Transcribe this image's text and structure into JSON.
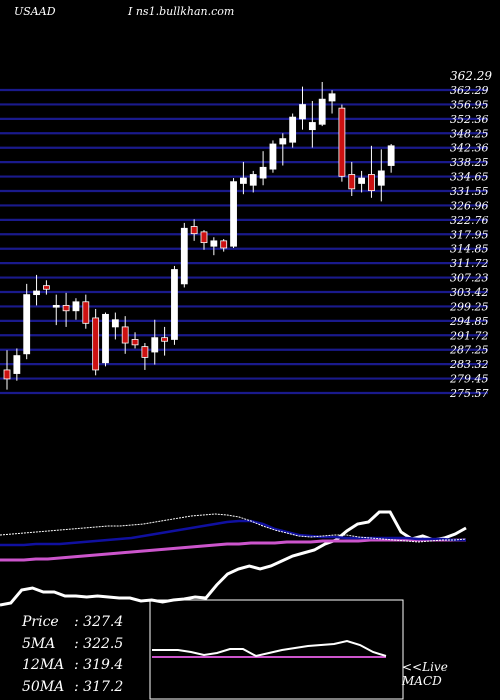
{
  "header": {
    "ticker": "USAAD",
    "site": "I ns1.bullkhan.com"
  },
  "colors": {
    "background": "#000000",
    "grid": "#1a1a8c",
    "up": "#ffffff",
    "down": "#cc1111",
    "ma_short": "#ffffff",
    "ma_mid": "#1010a0",
    "ma_long": "#cc55cc",
    "text": "#ffffff"
  },
  "chart_data": {
    "type": "candlestick",
    "price_axis": {
      "range": [
        275.57,
        362.29
      ],
      "top_label": "362.29",
      "tick_labels": [
        "362.29",
        "356.95",
        "352.36",
        "348.25",
        "342.36",
        "338.25",
        "334.65",
        "331.55",
        "326.96",
        "322.76",
        "317.95",
        "314.85",
        "311.72",
        "307.23",
        "303.42",
        "299.25",
        "294.85",
        "291.72",
        "287.25",
        "283.32",
        "279.45",
        "275.57"
      ]
    },
    "candles": [
      {
        "o": 282.0,
        "h": 287.5,
        "l": 276.5,
        "c": 279.5
      },
      {
        "o": 281.0,
        "h": 288.0,
        "l": 279.0,
        "c": 286.0
      },
      {
        "o": 286.5,
        "h": 306.0,
        "l": 285.0,
        "c": 303.0
      },
      {
        "o": 303.0,
        "h": 308.5,
        "l": 300.0,
        "c": 304.0
      },
      {
        "o": 305.5,
        "h": 307.0,
        "l": 303.0,
        "c": 304.5
      },
      {
        "o": 299.5,
        "h": 303.0,
        "l": 294.5,
        "c": 300.0
      },
      {
        "o": 300.0,
        "h": 303.5,
        "l": 294.0,
        "c": 298.5
      },
      {
        "o": 298.5,
        "h": 302.0,
        "l": 296.0,
        "c": 301.0
      },
      {
        "o": 301.0,
        "h": 303.0,
        "l": 293.5,
        "c": 295.0
      },
      {
        "o": 296.5,
        "h": 299.0,
        "l": 280.5,
        "c": 282.0
      },
      {
        "o": 284.0,
        "h": 298.0,
        "l": 283.0,
        "c": 297.5
      },
      {
        "o": 294.0,
        "h": 298.0,
        "l": 290.5,
        "c": 296.0
      },
      {
        "o": 294.0,
        "h": 297.0,
        "l": 286.5,
        "c": 289.5
      },
      {
        "o": 290.5,
        "h": 292.5,
        "l": 288.0,
        "c": 289.0
      },
      {
        "o": 288.5,
        "h": 289.5,
        "l": 282.0,
        "c": 285.5
      },
      {
        "o": 287.0,
        "h": 296.0,
        "l": 283.5,
        "c": 291.0
      },
      {
        "o": 291.0,
        "h": 294.0,
        "l": 286.0,
        "c": 290.0
      },
      {
        "o": 290.5,
        "h": 311.0,
        "l": 289.0,
        "c": 310.0
      },
      {
        "o": 306.0,
        "h": 323.0,
        "l": 305.0,
        "c": 321.5
      },
      {
        "o": 322.0,
        "h": 324.0,
        "l": 318.0,
        "c": 320.0
      },
      {
        "o": 320.5,
        "h": 321.0,
        "l": 315.5,
        "c": 317.5
      },
      {
        "o": 316.5,
        "h": 319.0,
        "l": 314.0,
        "c": 318.0
      },
      {
        "o": 318.0,
        "h": 318.5,
        "l": 315.0,
        "c": 316.0
      },
      {
        "o": 316.5,
        "h": 335.5,
        "l": 316.0,
        "c": 334.5
      },
      {
        "o": 334.0,
        "h": 340.0,
        "l": 331.0,
        "c": 335.5
      },
      {
        "o": 333.5,
        "h": 337.5,
        "l": 331.5,
        "c": 336.5
      },
      {
        "o": 335.5,
        "h": 343.0,
        "l": 333.5,
        "c": 338.5
      },
      {
        "o": 338.0,
        "h": 346.0,
        "l": 337.0,
        "c": 345.0
      },
      {
        "o": 345.0,
        "h": 348.0,
        "l": 339.0,
        "c": 346.5
      },
      {
        "o": 345.5,
        "h": 353.5,
        "l": 344.0,
        "c": 352.5
      },
      {
        "o": 352.0,
        "h": 361.0,
        "l": 349.0,
        "c": 356.0
      },
      {
        "o": 349.0,
        "h": 357.0,
        "l": 344.0,
        "c": 351.0
      },
      {
        "o": 350.5,
        "h": 362.3,
        "l": 350.0,
        "c": 357.5
      },
      {
        "o": 357.0,
        "h": 360.0,
        "l": 353.5,
        "c": 359.0
      },
      {
        "o": 355.0,
        "h": 356.0,
        "l": 334.5,
        "c": 336.0
      },
      {
        "o": 336.5,
        "h": 340.0,
        "l": 330.5,
        "c": 332.5
      },
      {
        "o": 334.0,
        "h": 337.5,
        "l": 331.5,
        "c": 335.5
      },
      {
        "o": 336.5,
        "h": 344.5,
        "l": 330.0,
        "c": 332.0
      },
      {
        "o": 333.5,
        "h": 343.5,
        "l": 329.0,
        "c": 337.5
      },
      {
        "o": 339.0,
        "h": 345.0,
        "l": 337.0,
        "c": 344.5
      }
    ],
    "ma_panel": {
      "ma_short": [
        535,
        534,
        533,
        532,
        531,
        530,
        529,
        528,
        527,
        526,
        526,
        525,
        524,
        522,
        520,
        518,
        516,
        515,
        514,
        515,
        517,
        521,
        526,
        530,
        533,
        536,
        537,
        536,
        535,
        535,
        537,
        538,
        539,
        540,
        541,
        542,
        541,
        540,
        540,
        539
      ],
      "ma_mid": [
        545,
        545,
        545,
        544,
        544,
        544,
        543,
        542,
        541,
        540,
        539,
        538,
        536,
        534,
        532,
        530,
        528,
        526,
        524,
        522,
        521,
        521,
        524,
        529,
        532,
        535,
        536,
        537,
        537,
        538,
        538,
        538,
        538,
        538,
        538,
        539,
        539,
        539,
        540,
        540
      ],
      "ma_long": [
        560,
        560,
        560,
        559,
        559,
        558,
        557,
        556,
        555,
        554,
        553,
        552,
        551,
        550,
        549,
        548,
        547,
        546,
        545,
        544,
        544,
        543,
        543,
        543,
        542,
        542,
        542,
        541,
        541,
        541,
        541,
        540,
        540,
        540,
        540,
        540,
        540,
        540,
        540,
        540
      ],
      "line_other": [
        605,
        603,
        590,
        588,
        592,
        592,
        596,
        596,
        597,
        596,
        597,
        598,
        598,
        601,
        600,
        602,
        600,
        599,
        597,
        598,
        585,
        574,
        569,
        566,
        569,
        566,
        561,
        556,
        553,
        550,
        544,
        540,
        531,
        524,
        522,
        512,
        512,
        532,
        539,
        536,
        540,
        538,
        534,
        528
      ]
    },
    "macd_panel": {
      "macd_line": [
        650,
        650,
        650,
        652,
        655,
        653,
        649,
        649,
        656,
        653,
        650,
        648,
        646,
        645,
        644,
        641,
        645,
        652,
        656
      ],
      "signal_line": [
        657,
        657,
        657,
        657,
        657,
        657,
        657,
        657,
        657,
        657,
        657,
        657,
        657,
        657,
        657,
        657,
        657,
        657,
        657
      ]
    }
  },
  "stats": [
    {
      "label": "Price",
      "value": "327.4"
    },
    {
      "label": "5MA",
      "value": "322.5"
    },
    {
      "label": "12MA",
      "value": "319.4"
    },
    {
      "label": "50MA",
      "value": "317.2"
    }
  ],
  "macd_label": {
    "line1": "<<Live",
    "line2": "MACD"
  }
}
